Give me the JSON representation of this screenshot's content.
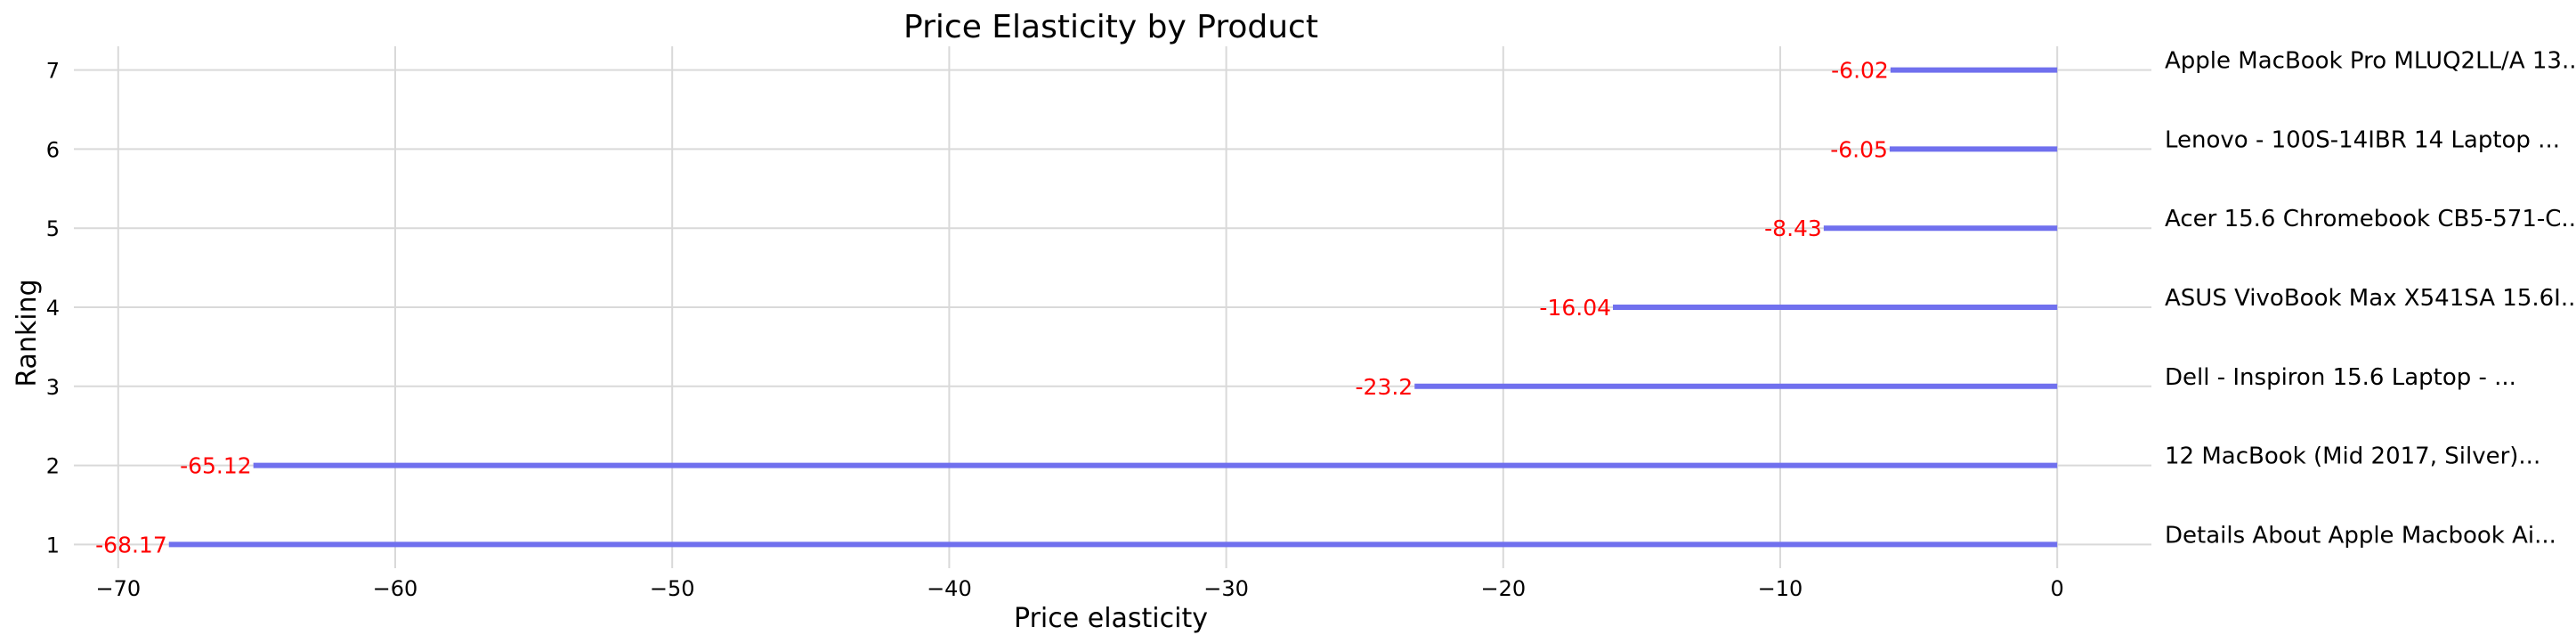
{
  "chart_data": {
    "type": "bar",
    "orientation": "horizontal",
    "title": "Price Elasticity by Product",
    "xlabel": "Price elasticity",
    "ylabel": "Ranking",
    "xlim": [
      -71.6,
      3.4
    ],
    "ylim": [
      0.7,
      7.3
    ],
    "x_ticks": [
      -70,
      -60,
      -50,
      -40,
      -30,
      -20,
      -10,
      0
    ],
    "y_ticks": [
      1,
      2,
      3,
      4,
      5,
      6,
      7
    ],
    "grid": true,
    "colors": {
      "bar": "#7070ee",
      "value_label": "#ff0000",
      "grid": "#d9d9d9"
    },
    "items": [
      {
        "rank": 7,
        "value": -6.02,
        "value_label": "-6.02",
        "product": "Apple MacBook Pro MLUQ2LL/A 13..."
      },
      {
        "rank": 6,
        "value": -6.05,
        "value_label": "-6.05",
        "product": "Lenovo - 100S-14IBR 14 Laptop ..."
      },
      {
        "rank": 5,
        "value": -8.43,
        "value_label": "-8.43",
        "product": "Acer 15.6 Chromebook CB5-571-C..."
      },
      {
        "rank": 4,
        "value": -16.04,
        "value_label": "-16.04",
        "product": "ASUS VivoBook Max X541SA 15.6I..."
      },
      {
        "rank": 3,
        "value": -23.2,
        "value_label": "-23.2",
        "product": "Dell - Inspiron 15.6 Laptop - ..."
      },
      {
        "rank": 2,
        "value": -65.12,
        "value_label": "-65.12",
        "product": "12 MacBook (Mid 2017, Silver)..."
      },
      {
        "rank": 1,
        "value": -68.17,
        "value_label": "-68.17",
        "product": "Details About Apple Macbook Ai..."
      }
    ]
  }
}
